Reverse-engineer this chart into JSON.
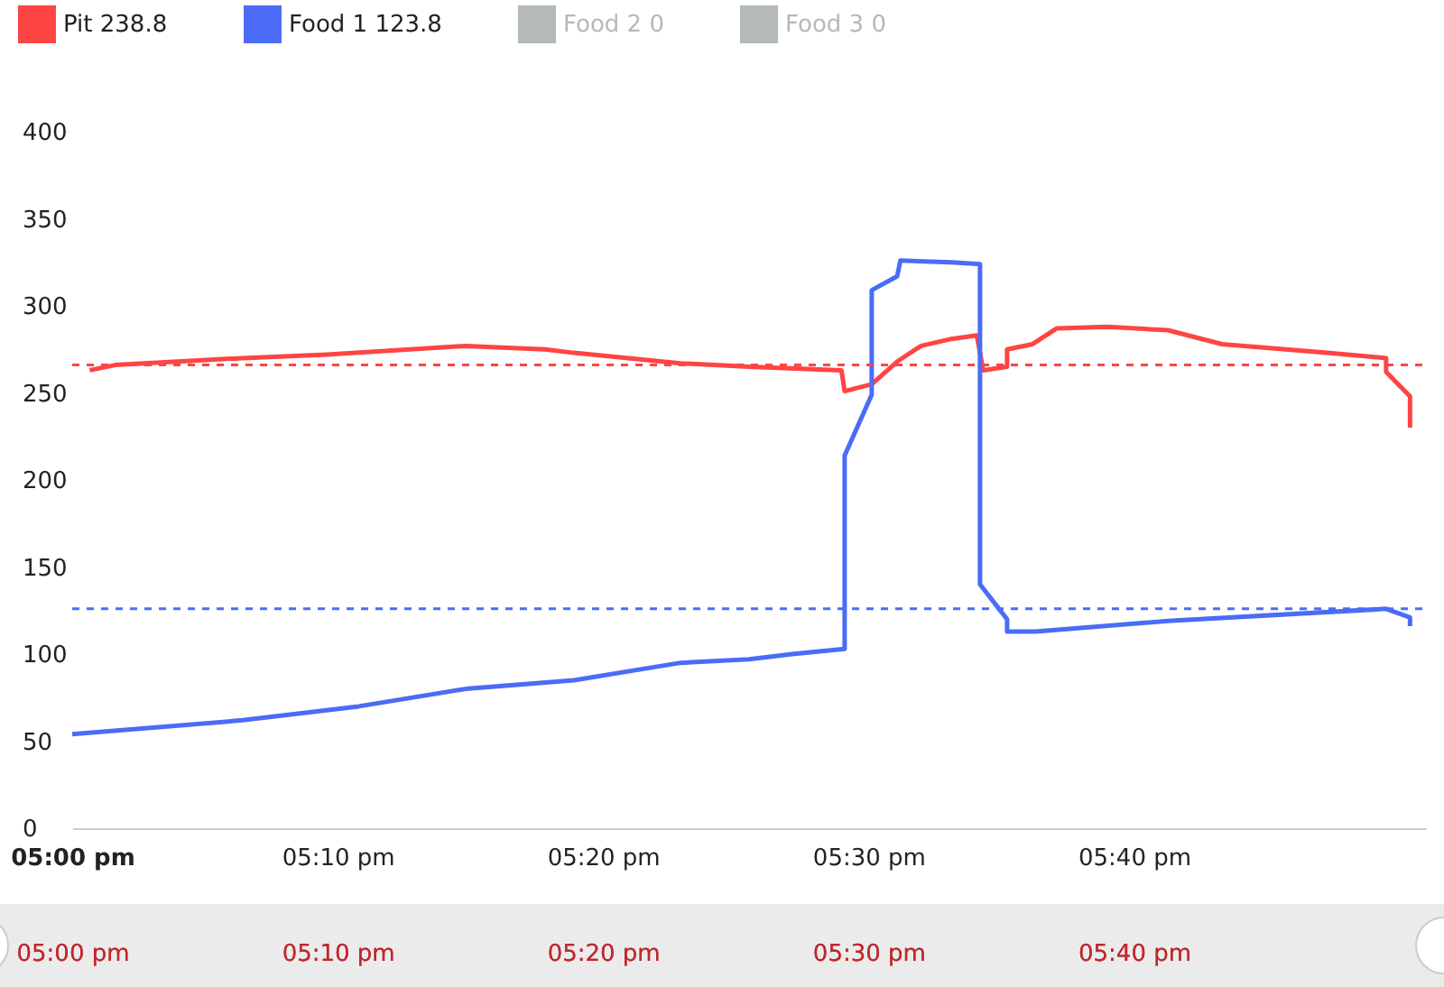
{
  "chart_data": {
    "type": "line",
    "xlim": [
      17,
      17.85
    ],
    "xticks": [
      {
        "value": 17,
        "label": "05:00 pm"
      },
      {
        "value": 17.1667,
        "label": "05:10 pm"
      },
      {
        "value": 17.3333,
        "label": "05:20 pm"
      },
      {
        "value": 17.5,
        "label": "05:30 pm"
      },
      {
        "value": 17.6667,
        "label": "05:40 pm"
      }
    ],
    "ylim": [
      0,
      400
    ],
    "yticks": [
      0,
      50,
      100,
      150,
      200,
      250,
      300,
      350,
      400
    ],
    "grid": false,
    "legend": "top left",
    "line_style": "solid",
    "marker": "none",
    "series": [
      {
        "name": "Pit 238.8",
        "color": "#ff4444",
        "x": [
          17.011,
          17.027,
          17.107,
          17.16,
          17.247,
          17.297,
          17.315,
          17.382,
          17.425,
          17.483,
          17.485,
          17.502,
          17.518,
          17.533,
          17.552,
          17.568,
          17.572,
          17.587,
          17.587,
          17.603,
          17.618,
          17.65,
          17.688,
          17.722,
          17.788,
          17.825,
          17.825,
          17.84,
          17.84
        ],
        "values": [
          263,
          266,
          270,
          272,
          277,
          275,
          273,
          267,
          265,
          263,
          251,
          255,
          268,
          277,
          281,
          283,
          263,
          265,
          275,
          278,
          287,
          288,
          286,
          278,
          273,
          270,
          262,
          248,
          230
        ]
      },
      {
        "name": "Food 1 123.8",
        "color": "#4a6cf7",
        "x": [
          17.0,
          17.107,
          17.18,
          17.247,
          17.315,
          17.382,
          17.425,
          17.452,
          17.485,
          17.485,
          17.502,
          17.502,
          17.518,
          17.52,
          17.552,
          17.57,
          17.57,
          17.587,
          17.587,
          17.605,
          17.688,
          17.825,
          17.84,
          17.84
        ],
        "values": [
          54,
          62,
          70,
          80,
          85,
          95,
          97,
          100,
          103,
          214,
          249,
          309,
          317,
          326,
          325,
          324,
          140,
          120,
          113,
          113,
          119,
          126,
          121,
          116
        ]
      },
      {
        "name": "Food 2 0",
        "color": "#b3bab8"
      },
      {
        "name": "Food 3 0",
        "color": "#b3bab8"
      }
    ],
    "ref_lines": [
      {
        "axis": "y",
        "value": 266,
        "color": "#ff4444",
        "line_style": "dashed"
      },
      {
        "axis": "y",
        "value": 126,
        "color": "#4a6cf7",
        "line_style": "dashed"
      }
    ]
  }
}
